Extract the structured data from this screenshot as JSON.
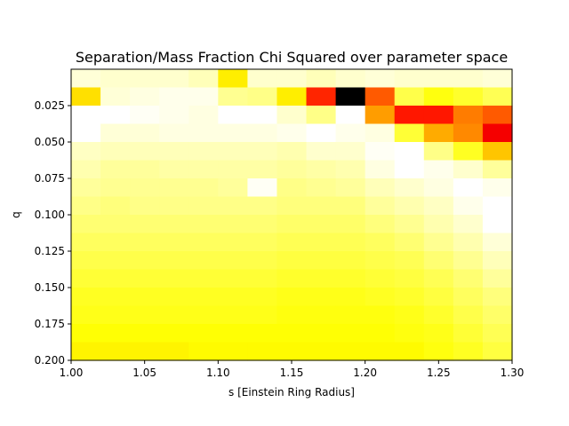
{
  "chart_data": {
    "type": "heatmap",
    "title": "Separation/Mass Fraction Chi Squared over parameter space",
    "xlabel": "s [Einstein Ring Radius]",
    "ylabel": "q",
    "xlim": [
      1.0,
      1.3
    ],
    "ylim": [
      0.2,
      0.0
    ],
    "x_ticks": [
      "1.00",
      "1.05",
      "1.10",
      "1.15",
      "1.20",
      "1.25",
      "1.30"
    ],
    "y_ticks": [
      "0.025",
      "0.050",
      "0.075",
      "0.100",
      "0.125",
      "0.150",
      "0.175",
      "0.200"
    ],
    "x_tick_values": [
      1.0,
      1.05,
      1.1,
      1.15,
      1.2,
      1.25,
      1.3
    ],
    "y_tick_values": [
      0.025,
      0.05,
      0.075,
      0.1,
      0.125,
      0.15,
      0.175,
      0.2
    ],
    "colormap": "hot",
    "n_cols": 15,
    "n_rows": 16,
    "row_q_step": 0.0125,
    "grid": false,
    "colorbar": false,
    "values": [
      [
        0.96,
        0.95,
        0.95,
        0.95,
        0.93,
        0.72,
        0.95,
        0.95,
        0.93,
        0.95,
        0.96,
        0.95,
        0.95,
        0.95,
        0.96
      ],
      [
        0.7,
        0.96,
        0.97,
        0.98,
        0.98,
        0.89,
        0.88,
        0.72,
        0.42,
        0.0,
        0.5,
        0.82,
        0.76,
        0.79,
        0.83
      ],
      [
        1.0,
        1.0,
        0.99,
        0.98,
        0.97,
        1.0,
        1.0,
        0.95,
        0.88,
        1.0,
        0.6,
        0.4,
        0.4,
        0.55,
        0.5
      ],
      [
        1.0,
        0.96,
        0.96,
        0.97,
        0.97,
        0.97,
        0.97,
        0.98,
        1.0,
        0.98,
        0.97,
        0.8,
        0.62,
        0.57,
        0.35
      ],
      [
        0.94,
        0.93,
        0.93,
        0.93,
        0.93,
        0.93,
        0.93,
        0.92,
        0.95,
        0.95,
        0.99,
        1.0,
        0.88,
        0.78,
        0.66
      ],
      [
        0.92,
        0.9,
        0.9,
        0.91,
        0.91,
        0.91,
        0.91,
        0.9,
        0.91,
        0.92,
        0.97,
        1.0,
        0.98,
        0.95,
        0.9
      ],
      [
        0.9,
        0.89,
        0.89,
        0.89,
        0.89,
        0.9,
        0.99,
        0.88,
        0.89,
        0.9,
        0.93,
        0.95,
        0.97,
        1.0,
        0.98
      ],
      [
        0.88,
        0.87,
        0.88,
        0.88,
        0.88,
        0.88,
        0.88,
        0.87,
        0.87,
        0.87,
        0.9,
        0.92,
        0.94,
        0.98,
        1.0
      ],
      [
        0.86,
        0.86,
        0.86,
        0.86,
        0.86,
        0.86,
        0.86,
        0.85,
        0.85,
        0.85,
        0.87,
        0.89,
        0.92,
        0.95,
        1.0
      ],
      [
        0.84,
        0.84,
        0.84,
        0.84,
        0.84,
        0.84,
        0.84,
        0.83,
        0.83,
        0.83,
        0.84,
        0.86,
        0.89,
        0.92,
        0.96
      ],
      [
        0.82,
        0.82,
        0.82,
        0.82,
        0.82,
        0.82,
        0.82,
        0.81,
        0.81,
        0.81,
        0.82,
        0.83,
        0.86,
        0.89,
        0.93
      ],
      [
        0.8,
        0.8,
        0.8,
        0.8,
        0.8,
        0.8,
        0.8,
        0.79,
        0.79,
        0.79,
        0.8,
        0.81,
        0.83,
        0.86,
        0.9
      ],
      [
        0.78,
        0.78,
        0.78,
        0.78,
        0.78,
        0.78,
        0.78,
        0.77,
        0.77,
        0.77,
        0.78,
        0.79,
        0.81,
        0.84,
        0.87
      ],
      [
        0.77,
        0.77,
        0.77,
        0.77,
        0.77,
        0.77,
        0.77,
        0.76,
        0.76,
        0.76,
        0.76,
        0.77,
        0.79,
        0.82,
        0.85
      ],
      [
        0.75,
        0.75,
        0.75,
        0.75,
        0.75,
        0.75,
        0.75,
        0.75,
        0.75,
        0.75,
        0.75,
        0.76,
        0.77,
        0.8,
        0.83
      ],
      [
        0.73,
        0.73,
        0.73,
        0.73,
        0.74,
        0.74,
        0.74,
        0.74,
        0.74,
        0.74,
        0.74,
        0.74,
        0.76,
        0.78,
        0.81
      ]
    ]
  }
}
